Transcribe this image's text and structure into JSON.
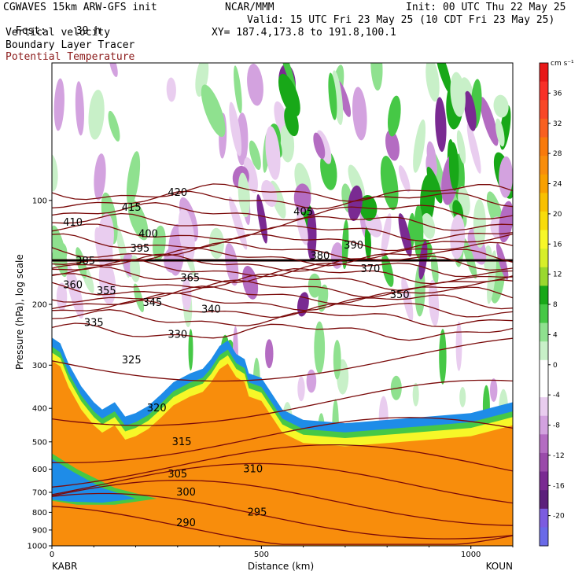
{
  "header": {
    "model": "CGWAVES 15km ARW-GFS init",
    "fcst_label": "Fcst:",
    "fcst_value": "39 h",
    "org": "NCAR/MMM",
    "init": "Init: 00 UTC Thu 22 May 25",
    "valid": "Valid: 15 UTC Fri 23 May 25 (10 CDT Fri 23 May 25)",
    "xy": "XY= 187.4,173.8 to 191.8,100.1",
    "field1": "Vertical velocity",
    "field2": "Boundary Layer Tracer",
    "field3": "Potential Temperature",
    "field3_color": "#8b1a1a"
  },
  "chart_data": {
    "type": "heatmap",
    "xlabel": "Distance (km)",
    "ylabel": "Pressure (hPa), log scale",
    "xlim": [
      0,
      1100
    ],
    "ylim": [
      1000,
      40
    ],
    "x_ticks": [
      "0",
      "500",
      "1000"
    ],
    "y_ticks": [
      "100",
      "200",
      "300",
      "400",
      "500",
      "600",
      "700",
      "800",
      "900",
      "1000"
    ],
    "start_label": "KABR",
    "end_label": "KOUN",
    "colorbar": {
      "unit": "cm s⁻¹",
      "ticks": [
        "36",
        "32",
        "28",
        "24",
        "20",
        "16",
        "12",
        "8",
        "4",
        "0",
        "-4",
        "-8",
        "-12",
        "-16",
        "-20"
      ],
      "colors": [
        "#6a6ae8",
        "#7c5ce0",
        "#5c1f7c",
        "#7a2a92",
        "#9a4aaa",
        "#b46cc2",
        "#d3a2df",
        "#e9cdef",
        "#ffffff",
        "#ffffff",
        "#c8f0c8",
        "#8fe18f",
        "#46c846",
        "#18a818",
        "#9ad82e",
        "#d7ef2a",
        "#f7f728",
        "#f8dc0a",
        "#f8c000",
        "#f8a000",
        "#f88d0c",
        "#f87a0c",
        "#f86020",
        "#f84828",
        "#f83028",
        "#e81818"
      ]
    },
    "theta_contours": {
      "color": "#7a0a0a",
      "labels": [
        "420",
        "415",
        "410",
        "405",
        "400",
        "395",
        "390",
        "385",
        "380",
        "370",
        "365",
        "360",
        "355",
        "350",
        "345",
        "340",
        "335",
        "330",
        "325",
        "320",
        "315",
        "310",
        "305",
        "300",
        "295",
        "290"
      ]
    }
  }
}
